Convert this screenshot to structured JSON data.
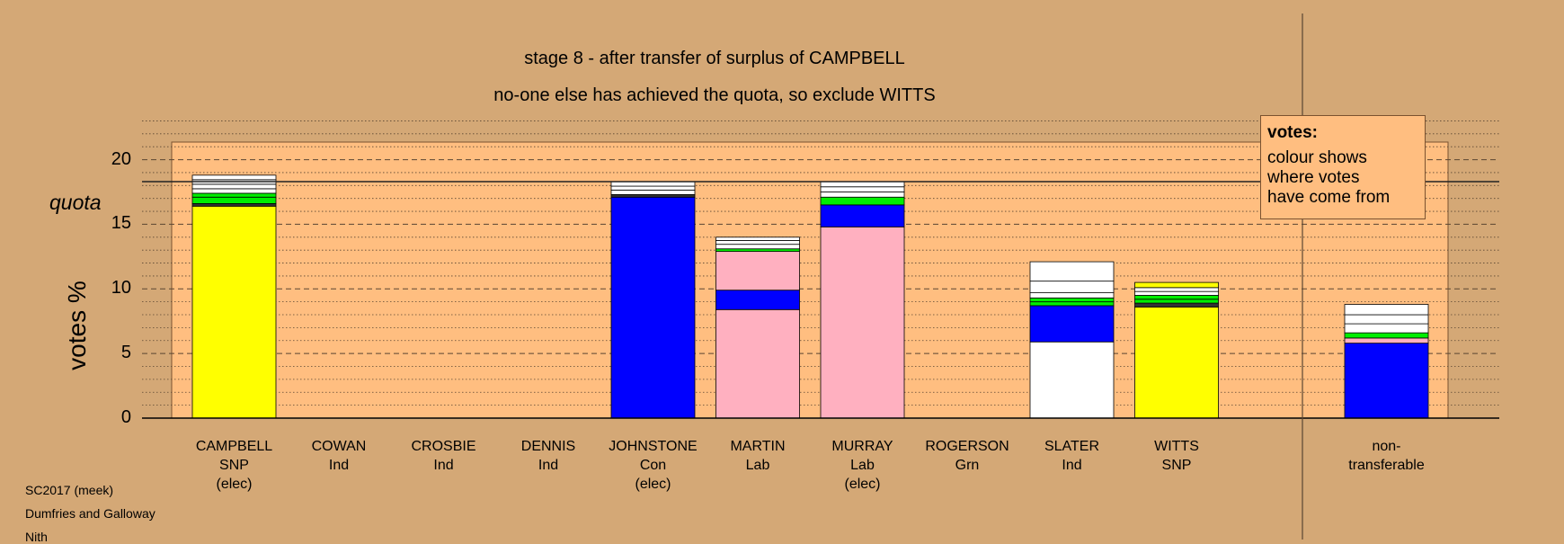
{
  "title_lines": [
    "stage 8 - after transfer of surplus of CAMPBELL",
    "no-one else has achieved the quota, so exclude WITTS"
  ],
  "legend": {
    "title": "votes:",
    "lines": [
      "colour shows",
      "where votes",
      "have come from"
    ]
  },
  "info_lines": [
    "SC2017 (meek)",
    "Dumfries and Galloway",
    "Nith"
  ],
  "colors": {
    "background": "#D4A876",
    "plot_area": "#FFBE80",
    "SNP": "#FFFF00",
    "Con": "#0000FF",
    "Lab": "#FFB0C0",
    "Grn": "#00EE00",
    "Ind": "#FFFFFF",
    "dark": "#333333"
  },
  "chart_data": {
    "type": "bar",
    "stacked": true,
    "ylabel": "votes %",
    "quota_label": "quota",
    "quota": 18.3,
    "ylim": [
      0,
      23
    ],
    "yticks": [
      0,
      5,
      10,
      15,
      20
    ],
    "grid": "dashed at 5, dotted at 1",
    "categories": [
      {
        "name": "CAMPBELL",
        "party": "SNP",
        "note": "(elec)",
        "segments": [
          [
            "SNP",
            16.4
          ],
          [
            "dark",
            0.2
          ],
          [
            "Grn",
            0.5
          ],
          [
            "Grn",
            0.3
          ],
          [
            "Ind",
            0.35
          ],
          [
            "Ind",
            0.35
          ],
          [
            "Ind",
            0.35
          ],
          [
            "Ind",
            0.35
          ]
        ]
      },
      {
        "name": "COWAN",
        "party": "Ind",
        "note": "",
        "segments": []
      },
      {
        "name": "CROSBIE",
        "party": "Ind",
        "note": "",
        "segments": []
      },
      {
        "name": "DENNIS",
        "party": "Ind",
        "note": "",
        "segments": []
      },
      {
        "name": "JOHNSTONE",
        "party": "Con",
        "note": "(elec)",
        "segments": [
          [
            "Con",
            17.1
          ],
          [
            "dark",
            0.2
          ],
          [
            "Ind",
            0.35
          ],
          [
            "Ind",
            0.3
          ],
          [
            "Ind",
            0.35
          ]
        ]
      },
      {
        "name": "MARTIN",
        "party": "Lab",
        "note": "",
        "segments": [
          [
            "Lab",
            8.4
          ],
          [
            "Con",
            1.5
          ],
          [
            "Lab",
            3.0
          ],
          [
            "Grn",
            0.2
          ],
          [
            "Ind",
            0.35
          ],
          [
            "Ind",
            0.3
          ],
          [
            "Ind",
            0.25
          ]
        ]
      },
      {
        "name": "MURRAY",
        "party": "Lab",
        "note": "(elec)",
        "segments": [
          [
            "Lab",
            14.8
          ],
          [
            "Con",
            1.7
          ],
          [
            "Grn",
            0.6
          ],
          [
            "Ind",
            0.4
          ],
          [
            "Ind",
            0.4
          ],
          [
            "Ind",
            0.4
          ]
        ]
      },
      {
        "name": "ROGERSON",
        "party": "Grn",
        "note": "",
        "segments": []
      },
      {
        "name": "SLATER",
        "party": "Ind",
        "note": "",
        "segments": [
          [
            "Ind",
            5.9
          ],
          [
            "Con",
            2.8
          ],
          [
            "Grn",
            0.3
          ],
          [
            "Grn",
            0.3
          ],
          [
            "Ind",
            0.4
          ],
          [
            "Ind",
            0.9
          ],
          [
            "Ind",
            1.5
          ]
        ]
      },
      {
        "name": "WITTS",
        "party": "SNP",
        "note": "",
        "segments": [
          [
            "SNP",
            8.6
          ],
          [
            "dark",
            0.3
          ],
          [
            "Grn",
            0.3
          ],
          [
            "Grn",
            0.3
          ],
          [
            "Ind",
            0.3
          ],
          [
            "Ind",
            0.3
          ],
          [
            "SNP",
            0.4
          ]
        ]
      },
      {
        "name": "non-",
        "party": "transferable",
        "note": "",
        "segments": [
          [
            "Con",
            5.8
          ],
          [
            "Lab",
            0.4
          ],
          [
            "Grn",
            0.4
          ],
          [
            "Ind",
            0.7
          ],
          [
            "Ind",
            0.7
          ],
          [
            "Ind",
            0.8
          ]
        ]
      }
    ]
  }
}
